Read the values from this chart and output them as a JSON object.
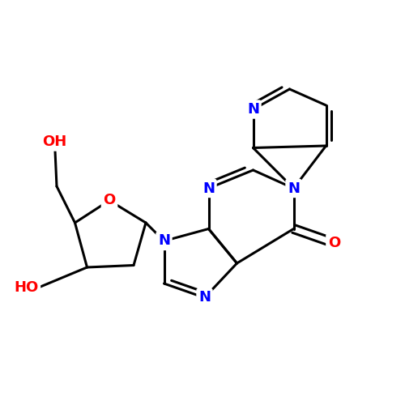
{
  "bg_color": "#ffffff",
  "bond_color": "#000000",
  "n_color": "#0000ff",
  "o_color": "#ff0000",
  "lw": 2.2,
  "dbl_sep": 0.13,
  "fs": 13,
  "figsize": [
    5.0,
    5.0
  ],
  "dpi": 100,
  "xlim": [
    0.5,
    10.5
  ],
  "ylim": [
    2.0,
    10.5
  ]
}
